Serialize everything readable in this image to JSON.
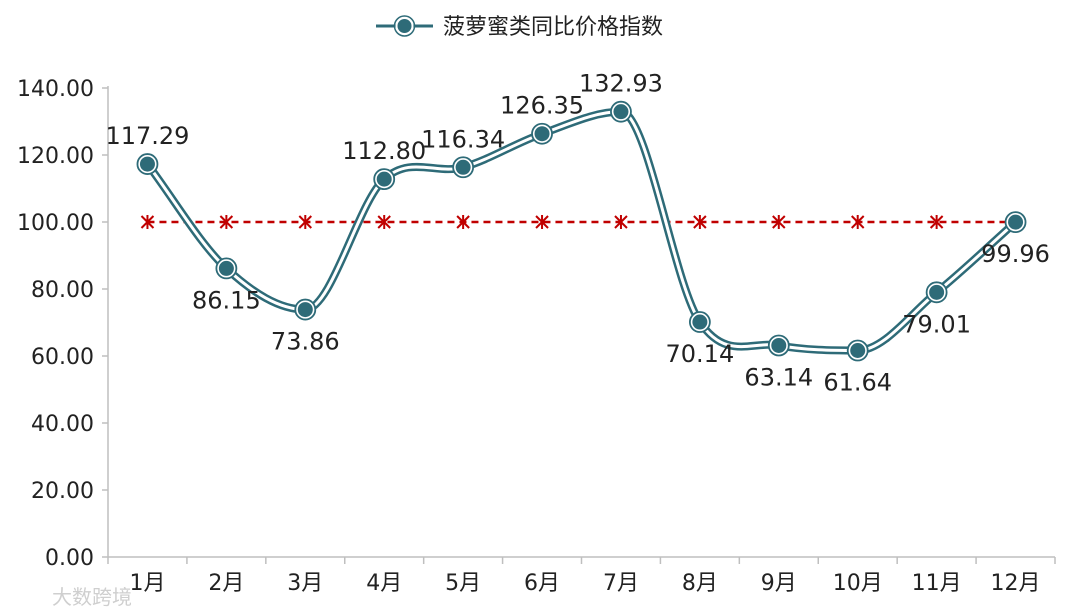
{
  "chart_data": {
    "type": "line",
    "title": "",
    "xlabel": "",
    "ylabel": "",
    "categories": [
      "1月",
      "2月",
      "3月",
      "4月",
      "5月",
      "6月",
      "7月",
      "8月",
      "9月",
      "10月",
      "11月",
      "12月"
    ],
    "series": [
      {
        "name": "菠萝蜜类同比价格指数",
        "values": [
          117.29,
          86.15,
          73.86,
          112.8,
          116.34,
          126.35,
          132.93,
          70.14,
          63.14,
          61.64,
          79.01,
          99.96
        ],
        "labels": [
          "117.29",
          "86.15",
          "73.86",
          "112.80",
          "116.34",
          "126.35",
          "132.93",
          "70.14",
          "63.14",
          "61.64",
          "79.01",
          "99.96"
        ],
        "color": "#2e6b78",
        "smooth": true
      },
      {
        "name": "",
        "values": [
          100,
          100,
          100,
          100,
          100,
          100,
          100,
          100,
          100,
          100,
          100,
          100
        ],
        "color": "#c00000",
        "dashed": true,
        "marker": "asterisk"
      }
    ],
    "ylim": [
      0,
      140
    ],
    "yticks": [
      "0.00",
      "20.00",
      "40.00",
      "60.00",
      "80.00",
      "100.00",
      "120.00",
      "140.00"
    ],
    "legend": "top-center",
    "grid": false
  },
  "watermark": "大数跨境"
}
